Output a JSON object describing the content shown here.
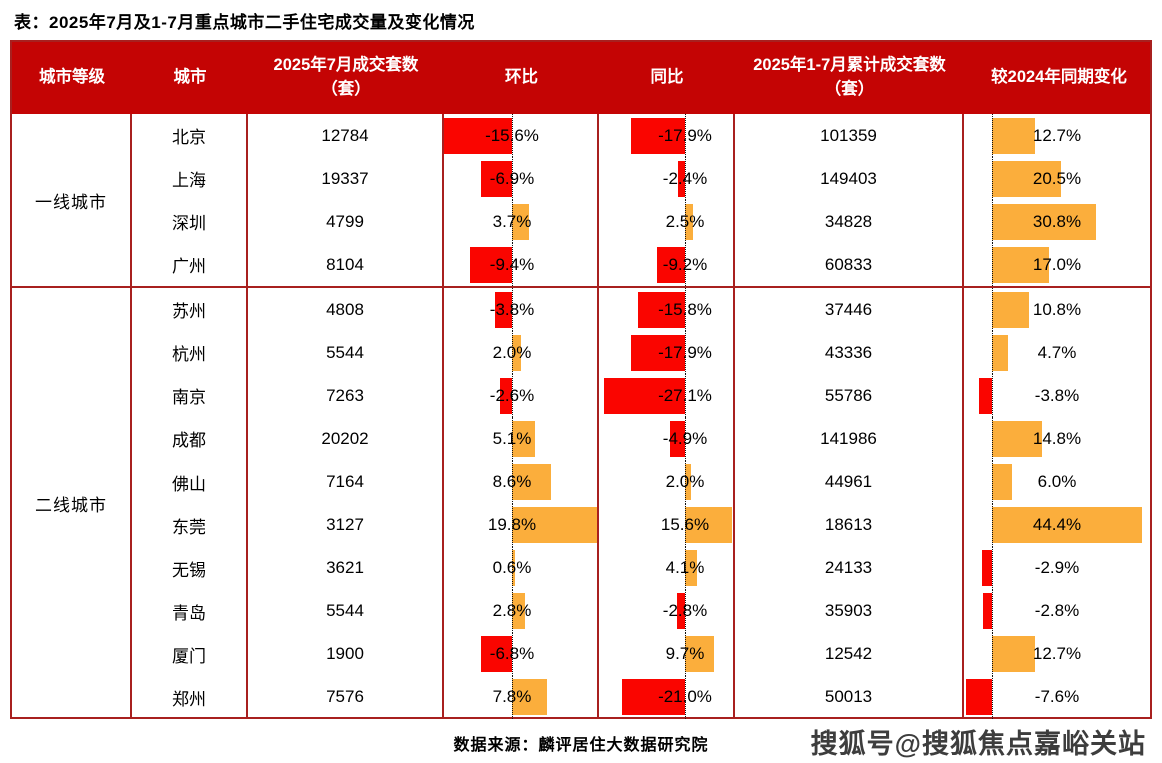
{
  "title": "表：2025年7月及1-7月重点城市二手住宅成交量及变化情况",
  "columns": [
    "城市等级",
    "城市",
    "2025年7月成交套数（套）",
    "环比",
    "同比",
    "2025年1-7月累计成交套数（套）",
    "较2024年同期变化"
  ],
  "source_note": "数据来源：麟评居住大数据研究院",
  "watermark": "搜狐号@搜狐焦点嘉峪关站",
  "colors": {
    "header_bg": "#C40404",
    "border": "#A8201F",
    "bar_negative": "#FA0500",
    "bar_positive": "#FBAE3C",
    "zero_line": "#111111"
  },
  "chart_data": {
    "type": "table",
    "title": "2025年7月及1-7月重点城市二手住宅成交量及变化情况",
    "columns": [
      "城市等级",
      "城市",
      "2025年7月成交套数（套）",
      "环比",
      "同比",
      "2025年1-7月累计成交套数（套）",
      "较2024年同期变化"
    ],
    "bar_columns": {
      "环比": {
        "unit": "%",
        "max_abs": 19.8,
        "negative_color": "#FA0500",
        "positive_color": "#FBAE3C"
      },
      "同比": {
        "unit": "%",
        "max_abs": 27.1,
        "negative_color": "#FA0500",
        "positive_color": "#FBAE3C"
      },
      "较2024年同期变化": {
        "unit": "%",
        "max_abs": 44.4,
        "negative_color": "#FA0500",
        "positive_color": "#FBAE3C"
      }
    },
    "groups": [
      {
        "tier": "一线城市",
        "rows": [
          {
            "city": "北京",
            "jul_units": 12784,
            "mom_pct": -15.6,
            "yoy_pct": -17.9,
            "cum_units": 101359,
            "vs2024_pct": 12.7
          },
          {
            "city": "上海",
            "jul_units": 19337,
            "mom_pct": -6.9,
            "yoy_pct": -2.4,
            "cum_units": 149403,
            "vs2024_pct": 20.5
          },
          {
            "city": "深圳",
            "jul_units": 4799,
            "mom_pct": 3.7,
            "yoy_pct": 2.5,
            "cum_units": 34828,
            "vs2024_pct": 30.8
          },
          {
            "city": "广州",
            "jul_units": 8104,
            "mom_pct": -9.4,
            "yoy_pct": -9.2,
            "cum_units": 60833,
            "vs2024_pct": 17.0
          }
        ]
      },
      {
        "tier": "二线城市",
        "rows": [
          {
            "city": "苏州",
            "jul_units": 4808,
            "mom_pct": -3.8,
            "yoy_pct": -15.8,
            "cum_units": 37446,
            "vs2024_pct": 10.8
          },
          {
            "city": "杭州",
            "jul_units": 5544,
            "mom_pct": 2.0,
            "yoy_pct": -17.9,
            "cum_units": 43336,
            "vs2024_pct": 4.7
          },
          {
            "city": "南京",
            "jul_units": 7263,
            "mom_pct": -2.6,
            "yoy_pct": -27.1,
            "cum_units": 55786,
            "vs2024_pct": -3.8
          },
          {
            "city": "成都",
            "jul_units": 20202,
            "mom_pct": 5.1,
            "yoy_pct": -4.9,
            "cum_units": 141986,
            "vs2024_pct": 14.8
          },
          {
            "city": "佛山",
            "jul_units": 7164,
            "mom_pct": 8.6,
            "yoy_pct": 2.0,
            "cum_units": 44961,
            "vs2024_pct": 6.0
          },
          {
            "city": "东莞",
            "jul_units": 3127,
            "mom_pct": 19.8,
            "yoy_pct": 15.6,
            "cum_units": 18613,
            "vs2024_pct": 44.4
          },
          {
            "city": "无锡",
            "jul_units": 3621,
            "mom_pct": 0.6,
            "yoy_pct": 4.1,
            "cum_units": 24133,
            "vs2024_pct": -2.9
          },
          {
            "city": "青岛",
            "jul_units": 5544,
            "mom_pct": 2.8,
            "yoy_pct": -2.8,
            "cum_units": 35903,
            "vs2024_pct": -2.8
          },
          {
            "city": "厦门",
            "jul_units": 1900,
            "mom_pct": -6.8,
            "yoy_pct": 9.7,
            "cum_units": 12542,
            "vs2024_pct": 12.7
          },
          {
            "city": "郑州",
            "jul_units": 7576,
            "mom_pct": 7.8,
            "yoy_pct": -21.0,
            "cum_units": 50013,
            "vs2024_pct": -7.6
          }
        ]
      }
    ]
  }
}
